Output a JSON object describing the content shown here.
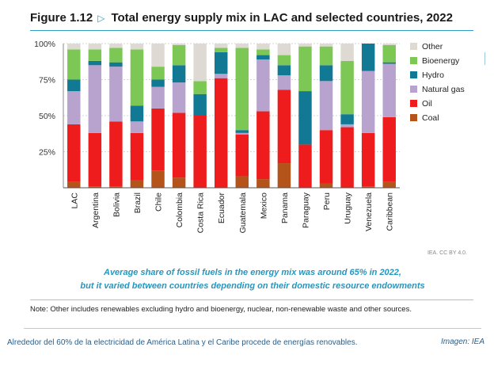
{
  "figure": {
    "number": "Figure 1.12",
    "title": "Total energy supply mix in LAC and selected countries, 2022",
    "credit": "IEA. CC BY 4.0.",
    "subtitle_line1": "Average share of fossil fuels in the energy mix was around 65% in 2022,",
    "subtitle_line2": "but it varied between countries depending on their domestic resource endowments",
    "note": "Note: Other includes renewables excluding hydro and bioenergy, nuclear, non-renewable waste and other sources."
  },
  "page": {
    "caption": "Alrededor del 60% de la electricidad de América Latina y el Caribe procede de energías renovables.",
    "image_credit": "Imagen: IEA"
  },
  "chart_data": {
    "type": "bar",
    "stacked": true,
    "unit": "%",
    "ylim": [
      0,
      100
    ],
    "yticks": [
      0,
      25,
      50,
      75,
      100
    ],
    "ytick_labels": [
      "",
      "25%",
      "50%",
      "75%",
      "100%"
    ],
    "grid": true,
    "legend_position": "right",
    "categories": [
      "LAC",
      "Argentina",
      "Bolivia",
      "Brazil",
      "Chile",
      "Colombia",
      "Costa Rica",
      "Ecuador",
      "Guatemala",
      "Mexico",
      "Panama",
      "Paraguay",
      "Peru",
      "Uruguay",
      "Venezuela",
      "Caribbean"
    ],
    "series": [
      {
        "name": "Coal",
        "color": "#b4541a",
        "values": [
          4,
          1,
          1,
          5,
          12,
          7,
          0,
          0,
          8,
          6,
          17,
          0,
          3,
          0,
          1,
          4
        ]
      },
      {
        "name": "Oil",
        "color": "#ee1c1c",
        "values": [
          40,
          37,
          45,
          33,
          43,
          45,
          50,
          76,
          29,
          47,
          51,
          30,
          37,
          42,
          37,
          45
        ]
      },
      {
        "name": "Natural gas",
        "color": "#b7a3cd",
        "values": [
          23,
          47,
          38,
          8,
          15,
          21,
          0,
          3,
          1,
          36,
          10,
          0,
          34,
          2,
          43,
          37
        ]
      },
      {
        "name": "Hydro",
        "color": "#117993",
        "values": [
          8,
          3,
          3,
          11,
          5,
          12,
          15,
          15,
          2,
          3,
          7,
          37,
          11,
          7,
          19,
          1
        ]
      },
      {
        "name": "Bioenergy",
        "color": "#7dc855",
        "values": [
          21,
          8,
          10,
          39,
          9,
          14,
          9,
          3,
          57,
          4,
          7,
          31,
          13,
          37,
          0,
          12
        ]
      },
      {
        "name": "Other",
        "color": "#dedad3",
        "values": [
          4,
          4,
          3,
          4,
          16,
          1,
          26,
          3,
          3,
          4,
          8,
          2,
          2,
          12,
          0,
          1
        ]
      }
    ],
    "legend_order": [
      "Other",
      "Bioenergy",
      "Hydro",
      "Natural gas",
      "Oil",
      "Coal"
    ]
  }
}
